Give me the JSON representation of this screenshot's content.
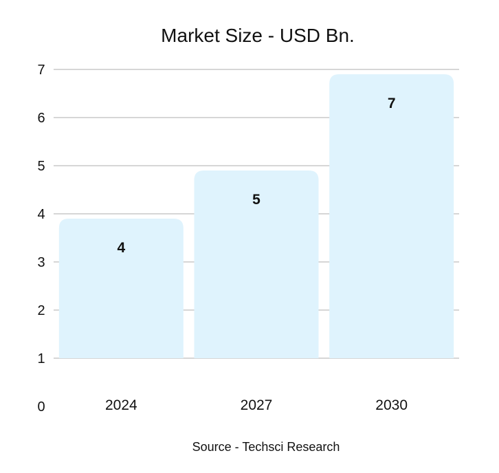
{
  "chart_data": {
    "type": "bar",
    "title": "Market Size - USD Bn.",
    "source": "Source - Techsci Research",
    "categories": [
      "2024",
      "2027",
      "2030"
    ],
    "values": [
      4,
      5,
      7
    ],
    "data_labels": [
      "4",
      "5",
      "7"
    ],
    "y_ticks": [
      "0",
      "1",
      "2",
      "3",
      "4",
      "5",
      "6",
      "7"
    ],
    "ylim": [
      1,
      7
    ],
    "grid": true,
    "legend": "none",
    "bar_color": "#dff3fd",
    "grid_color": "#c8c8c8"
  }
}
